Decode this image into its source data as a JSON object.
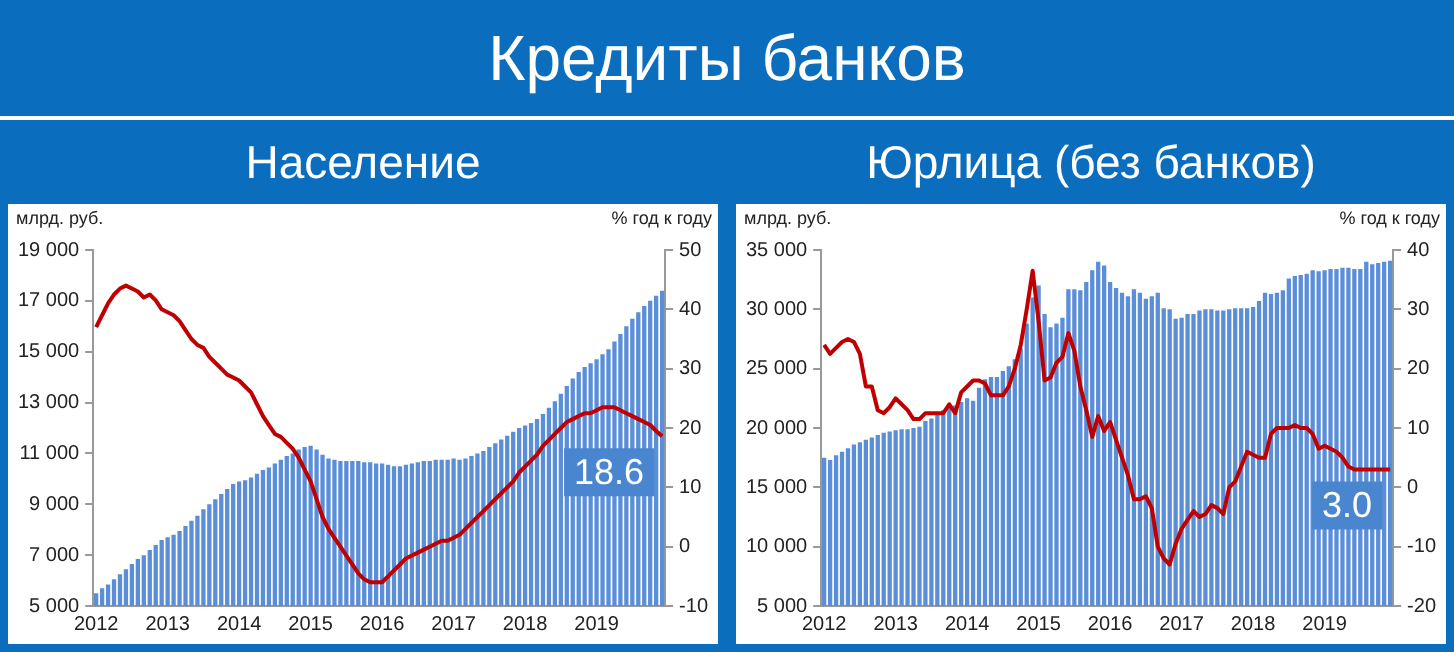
{
  "chart_data": [
    {
      "type": "bar",
      "title": "Кредиты банков",
      "subtitle": "Население",
      "ylabel": "млрд. руб.",
      "y2label": "% год к году",
      "categories": [
        "2012",
        null,
        null,
        null,
        null,
        null,
        null,
        null,
        null,
        null,
        null,
        null,
        "2013",
        null,
        null,
        null,
        null,
        null,
        null,
        null,
        null,
        null,
        null,
        null,
        "2014",
        null,
        null,
        null,
        null,
        null,
        null,
        null,
        null,
        null,
        null,
        null,
        "2015",
        null,
        null,
        null,
        null,
        null,
        null,
        null,
        null,
        null,
        null,
        null,
        "2016",
        null,
        null,
        null,
        null,
        null,
        null,
        null,
        null,
        null,
        null,
        null,
        "2017",
        null,
        null,
        null,
        null,
        null,
        null,
        null,
        null,
        null,
        null,
        null,
        "2018",
        null,
        null,
        null,
        null,
        null,
        null,
        null,
        null,
        null,
        null,
        null,
        "2019",
        null,
        null,
        null,
        null,
        null,
        null,
        null,
        null,
        null,
        null,
        null
      ],
      "ylim": [
        5000,
        19000
      ],
      "yticks": [
        {
          "value": 5000,
          "label": "5 000"
        },
        {
          "value": 7000,
          "label": "7 000"
        },
        {
          "value": 9000,
          "label": "9 000"
        },
        {
          "value": 11000,
          "label": "11 000"
        },
        {
          "value": 13000,
          "label": "13 000"
        },
        {
          "value": 15000,
          "label": "15 000"
        },
        {
          "value": 17000,
          "label": "17 000"
        },
        {
          "value": 19000,
          "label": "19 000"
        }
      ],
      "y2lim": [
        -10,
        50
      ],
      "y2ticks": [
        -10,
        0,
        10,
        20,
        30,
        40,
        50
      ],
      "series": [
        {
          "color": "#5b8ed8",
          "values": [
            5500,
            5700,
            5850,
            6050,
            6250,
            6450,
            6650,
            6850,
            7000,
            7200,
            7400,
            7600,
            7700,
            7800,
            7950,
            8150,
            8350,
            8550,
            8800,
            9000,
            9200,
            9400,
            9600,
            9800,
            9900,
            9950,
            10050,
            10200,
            10350,
            10450,
            10600,
            10750,
            10900,
            11000,
            11150,
            11250,
            11300,
            11150,
            10950,
            10800,
            10750,
            10700,
            10700,
            10700,
            10700,
            10650,
            10650,
            10600,
            10600,
            10550,
            10500,
            10500,
            10550,
            10600,
            10650,
            10700,
            10700,
            10750,
            10750,
            10750,
            10800,
            10750,
            10800,
            10900,
            11000,
            11100,
            11250,
            11400,
            11550,
            11700,
            11850,
            12000,
            12100,
            12200,
            12350,
            12550,
            12800,
            13050,
            13350,
            13650,
            13950,
            14200,
            14400,
            14550,
            14700,
            14900,
            15100,
            15400,
            15700,
            16000,
            16300,
            16550,
            16800,
            17000,
            17200,
            17400
          ]
        },
        {
          "type": "line",
          "color": "#c00000",
          "axis": "y2",
          "values": [
            37,
            39,
            41,
            42.5,
            43.5,
            44,
            43.5,
            43,
            42,
            42.5,
            41.5,
            40,
            39.5,
            39,
            38,
            36.5,
            35,
            34,
            33.5,
            32,
            31,
            30,
            29,
            28.5,
            28,
            27,
            26,
            24,
            22,
            20.5,
            19,
            18.5,
            17.5,
            16.5,
            15,
            13,
            11,
            8,
            5,
            3,
            1.5,
            0,
            -1.5,
            -3,
            -4.5,
            -5.5,
            -6,
            -6,
            -6,
            -5,
            -4,
            -3,
            -2,
            -1.5,
            -1,
            -0.5,
            0,
            0.5,
            1,
            1,
            1.5,
            2,
            3,
            4,
            5,
            6,
            7,
            8,
            9,
            10,
            11,
            12.5,
            13.5,
            14.5,
            15.5,
            17,
            18,
            19,
            20,
            21,
            21.5,
            22,
            22.5,
            22.5,
            23,
            23.5,
            23.5,
            23.5,
            23,
            22.5,
            22,
            21.5,
            21,
            20.5,
            19.5,
            18.6
          ],
          "value_labels": [
            null,
            null,
            null,
            null,
            null,
            null,
            null,
            null,
            null,
            null,
            null,
            null,
            null,
            null,
            null,
            null,
            null,
            null,
            null,
            null,
            null,
            null,
            null,
            null,
            null,
            null,
            null,
            null,
            null,
            null,
            null,
            null,
            null,
            null,
            null,
            null,
            null,
            null,
            null,
            null,
            null,
            null,
            null,
            null,
            null,
            null,
            null,
            null,
            null,
            null,
            null,
            null,
            null,
            null,
            null,
            null,
            null,
            null,
            null,
            null,
            null,
            null,
            null,
            null,
            null,
            null,
            null,
            null,
            null,
            null,
            null,
            null,
            null,
            null,
            null,
            null,
            null,
            null,
            null,
            null,
            null,
            null,
            null,
            null,
            null,
            null,
            null,
            null,
            null,
            null,
            null,
            null,
            null,
            null,
            null,
            "18.6"
          ]
        }
      ]
    },
    {
      "type": "bar",
      "subtitle": "Юрлица (без банков)",
      "ylabel": "млрд. руб.",
      "y2label": "% год к году",
      "categories": [
        "2012",
        null,
        null,
        null,
        null,
        null,
        null,
        null,
        null,
        null,
        null,
        null,
        "2013",
        null,
        null,
        null,
        null,
        null,
        null,
        null,
        null,
        null,
        null,
        null,
        "2014",
        null,
        null,
        null,
        null,
        null,
        null,
        null,
        null,
        null,
        null,
        null,
        "2015",
        null,
        null,
        null,
        null,
        null,
        null,
        null,
        null,
        null,
        null,
        null,
        "2016",
        null,
        null,
        null,
        null,
        null,
        null,
        null,
        null,
        null,
        null,
        null,
        "2017",
        null,
        null,
        null,
        null,
        null,
        null,
        null,
        null,
        null,
        null,
        null,
        "2018",
        null,
        null,
        null,
        null,
        null,
        null,
        null,
        null,
        null,
        null,
        null,
        "2019",
        null,
        null,
        null,
        null,
        null,
        null,
        null,
        null,
        null,
        null,
        null
      ],
      "ylim": [
        5000,
        35000
      ],
      "yticks": [
        {
          "value": 5000,
          "label": "5 000"
        },
        {
          "value": 10000,
          "label": "10 000"
        },
        {
          "value": 15000,
          "label": "15 000"
        },
        {
          "value": 20000,
          "label": "20 000"
        },
        {
          "value": 25000,
          "label": "25 000"
        },
        {
          "value": 30000,
          "label": "30 000"
        },
        {
          "value": 35000,
          "label": "35 000"
        }
      ],
      "y2lim": [
        -20,
        40
      ],
      "y2ticks": [
        -20,
        -10,
        0,
        10,
        20,
        30,
        40
      ],
      "series": [
        {
          "color": "#5b8ed8",
          "values": [
            17500,
            17300,
            17700,
            18000,
            18300,
            18600,
            18800,
            19000,
            19200,
            19400,
            19600,
            19700,
            19800,
            19900,
            19900,
            20000,
            20100,
            20600,
            20800,
            21100,
            21500,
            21700,
            21900,
            22200,
            22500,
            22300,
            23400,
            24100,
            24300,
            24300,
            24800,
            25200,
            25800,
            26700,
            28800,
            31000,
            32000,
            29600,
            28500,
            28800,
            29300,
            31700,
            31700,
            31600,
            32300,
            33300,
            34000,
            33700,
            32300,
            31800,
            31400,
            31100,
            31700,
            31400,
            30900,
            31100,
            31400,
            30100,
            30000,
            29200,
            29300,
            29600,
            29600,
            29900,
            30000,
            30000,
            29900,
            29900,
            30000,
            30100,
            30100,
            30100,
            30200,
            30700,
            31400,
            31300,
            31400,
            31600,
            32600,
            32800,
            32900,
            33000,
            33300,
            33200,
            33300,
            33400,
            33400,
            33500,
            33500,
            33400,
            33400,
            34000,
            33800,
            33900,
            34000,
            34100
          ]
        },
        {
          "type": "line",
          "color": "#c00000",
          "axis": "y2",
          "values": [
            24,
            22.5,
            23.5,
            24.5,
            25,
            24.5,
            22.5,
            17,
            17,
            13,
            12.5,
            13.5,
            15,
            14,
            13,
            11.5,
            11.5,
            12.5,
            12.5,
            12.5,
            12.5,
            14,
            12.5,
            16,
            17,
            18,
            18,
            17.5,
            15.5,
            15.5,
            15.5,
            17,
            20,
            24,
            30,
            36.5,
            28,
            18,
            18.5,
            21,
            22,
            26,
            23,
            17,
            13,
            8.5,
            12,
            9.5,
            11,
            8,
            5,
            2,
            -2,
            -2,
            -1.5,
            -3.5,
            -10,
            -12,
            -13,
            -9.5,
            -7,
            -5.5,
            -4,
            -5,
            -4.5,
            -3,
            -3.5,
            -4.5,
            0,
            1,
            3.5,
            6,
            5.5,
            5,
            5,
            9,
            10,
            10,
            10,
            10.5,
            10,
            10,
            9,
            6.5,
            7,
            6.5,
            6,
            5,
            3.5,
            3,
            3,
            3,
            3,
            3,
            3,
            3
          ],
          "value_labels": [
            null,
            null,
            null,
            null,
            null,
            null,
            null,
            null,
            null,
            null,
            null,
            null,
            null,
            null,
            null,
            null,
            null,
            null,
            null,
            null,
            null,
            null,
            null,
            null,
            null,
            null,
            null,
            null,
            null,
            null,
            null,
            null,
            null,
            null,
            null,
            null,
            null,
            null,
            null,
            null,
            null,
            null,
            null,
            null,
            null,
            null,
            null,
            null,
            null,
            null,
            null,
            null,
            null,
            null,
            null,
            null,
            null,
            null,
            null,
            null,
            null,
            null,
            null,
            null,
            null,
            null,
            null,
            null,
            null,
            null,
            null,
            null,
            null,
            null,
            null,
            null,
            null,
            null,
            null,
            null,
            null,
            null,
            null,
            null,
            null,
            null,
            null,
            null,
            null,
            null,
            null,
            null,
            null,
            null,
            null,
            "3.0"
          ]
        }
      ]
    }
  ]
}
